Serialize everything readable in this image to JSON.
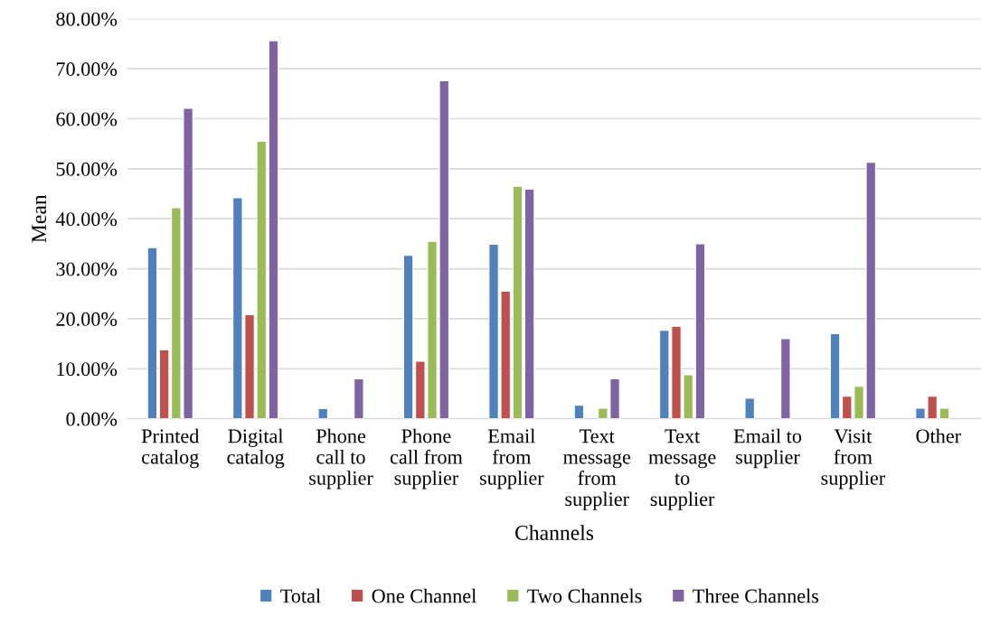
{
  "chart_data": {
    "type": "bar",
    "xlabel": "Channels",
    "ylabel": "Mean",
    "categories": [
      "Printed\ncatalog",
      "Digital\ncatalog",
      "Phone\ncall to\nsupplier",
      "Phone\ncall from\nsupplier",
      "Email\nfrom\nsupplier",
      "Text\nmessage\nfrom\nsupplier",
      "Text\nmessage\nto\nsupplier",
      "Email to\nsupplier",
      "Visit\nfrom\nsupplier",
      "Other"
    ],
    "series": [
      {
        "name": "Total",
        "color": "#4f81bd",
        "values": [
          34.2,
          44.2,
          2.0,
          32.7,
          34.9,
          2.7,
          17.7,
          4.1,
          17.0,
          2.1
        ]
      },
      {
        "name": "One Channel",
        "color": "#c0504d",
        "values": [
          13.8,
          20.8,
          null,
          11.5,
          25.5,
          null,
          18.5,
          null,
          4.5,
          4.5
        ]
      },
      {
        "name": "Two Channels",
        "color": "#9bbb59",
        "values": [
          42.2,
          55.5,
          null,
          35.5,
          46.5,
          2.1,
          8.8,
          null,
          6.5,
          2.1
        ]
      },
      {
        "name": "Three Channels",
        "color": "#8064a2",
        "values": [
          62.1,
          75.6,
          8.0,
          67.6,
          45.9,
          8.0,
          35.0,
          16.0,
          51.3,
          null
        ]
      }
    ],
    "ylim": [
      0,
      80
    ],
    "yticks": [
      {
        "value": 0,
        "label": "0.00%"
      },
      {
        "value": 10,
        "label": "10.00%"
      },
      {
        "value": 20,
        "label": "20.00%"
      },
      {
        "value": 30,
        "label": "30.00%"
      },
      {
        "value": 40,
        "label": "40.00%"
      },
      {
        "value": 50,
        "label": "50.00%"
      },
      {
        "value": 60,
        "label": "60.00%"
      },
      {
        "value": 70,
        "label": "70.00%"
      },
      {
        "value": 80,
        "label": "80.00%"
      }
    ],
    "grid": "y",
    "legend": "bottom"
  }
}
